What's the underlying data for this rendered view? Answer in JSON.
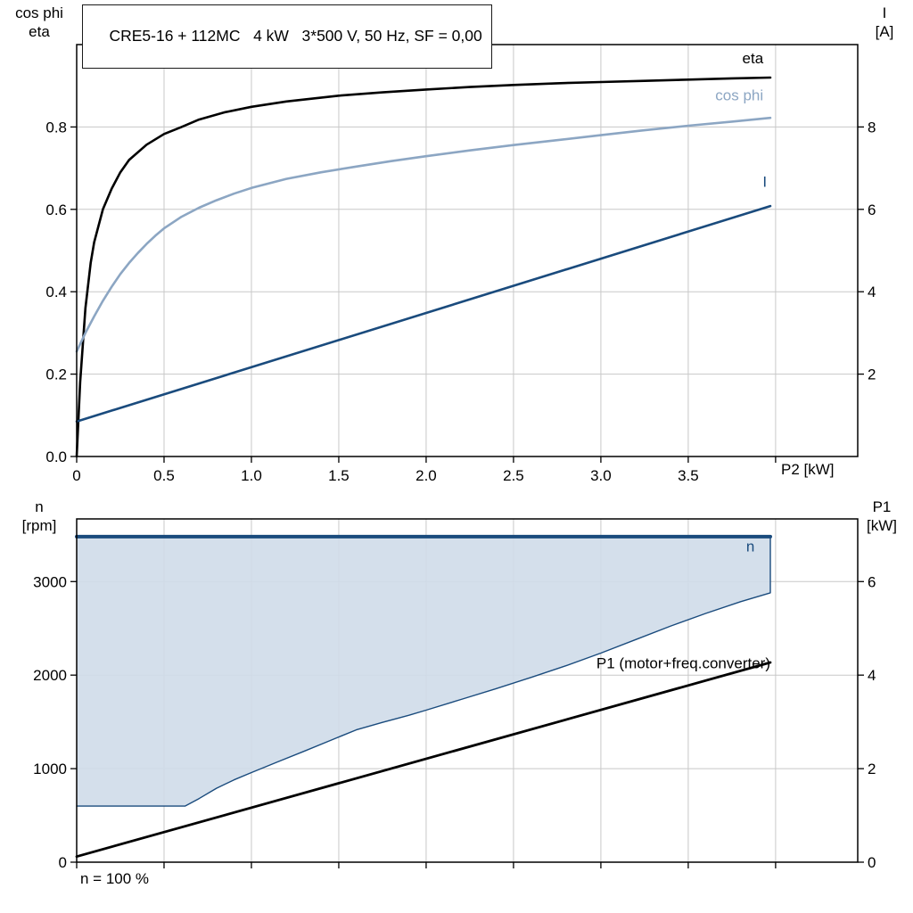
{
  "header": {
    "title": "CRE5-16 + 112MC   4 kW   3*500 V, 50 Hz, SF = 0,00"
  },
  "footer": {
    "note": "n = 100 %"
  },
  "colors": {
    "grid": "#c8c8c8",
    "frame": "#000000",
    "eta": "#000000",
    "cos_phi": "#8CA6C3",
    "current": "#1A4B7D",
    "speed": "#1A4B7D",
    "region_fill": "#CFDCE9",
    "p1": "#000000"
  },
  "chart_data": [
    {
      "type": "line",
      "title": "CRE5-16 + 112MC   4 kW   3*500 V, 50 Hz, SF = 0,00",
      "xlabel": "P2 [kW]",
      "x_range": [
        0,
        4.47
      ],
      "x_ticks": [
        {
          "v": 0,
          "label": "0"
        },
        {
          "v": 0.5,
          "label": "0.5"
        },
        {
          "v": 1,
          "label": "1.0"
        },
        {
          "v": 1.5,
          "label": "1.5"
        },
        {
          "v": 2,
          "label": "2.0"
        },
        {
          "v": 2.5,
          "label": "2.5"
        },
        {
          "v": 3,
          "label": "3.0"
        },
        {
          "v": 3.5,
          "label": "3.5"
        },
        {
          "v": 4
        }
      ],
      "left_axis": {
        "label": [
          "cos phi",
          "eta"
        ],
        "range": [
          0,
          1
        ],
        "ticks": [
          {
            "v": 0,
            "label": "0.0"
          },
          {
            "v": 0.2,
            "label": "0.2"
          },
          {
            "v": 0.4,
            "label": "0.4"
          },
          {
            "v": 0.6,
            "label": "0.6"
          },
          {
            "v": 0.8,
            "label": "0.8"
          }
        ]
      },
      "right_axis": {
        "label": [
          "I",
          "[A]"
        ],
        "range": [
          0,
          10
        ],
        "ticks": [
          {
            "v": 2,
            "label": "2"
          },
          {
            "v": 4,
            "label": "4"
          },
          {
            "v": 6,
            "label": "6"
          },
          {
            "v": 8,
            "label": "8"
          }
        ]
      },
      "series": [
        {
          "name": "eta",
          "axis": "left",
          "color_key": "eta",
          "width": 2.6,
          "label": {
            "x": 3.93,
            "y": 0.955,
            "anchor": "end"
          },
          "points": [
            [
              0,
              0
            ],
            [
              0.02,
              0.18
            ],
            [
              0.05,
              0.36
            ],
            [
              0.08,
              0.47
            ],
            [
              0.1,
              0.52
            ],
            [
              0.15,
              0.6
            ],
            [
              0.2,
              0.65
            ],
            [
              0.25,
              0.69
            ],
            [
              0.3,
              0.72
            ],
            [
              0.4,
              0.757
            ],
            [
              0.5,
              0.783
            ],
            [
              0.6,
              0.8
            ],
            [
              0.7,
              0.818
            ],
            [
              0.85,
              0.836
            ],
            [
              1,
              0.849
            ],
            [
              1.2,
              0.862
            ],
            [
              1.5,
              0.876
            ],
            [
              1.75,
              0.884
            ],
            [
              2,
              0.891
            ],
            [
              2.25,
              0.897
            ],
            [
              2.5,
              0.902
            ],
            [
              2.75,
              0.906
            ],
            [
              3,
              0.909
            ],
            [
              3.25,
              0.912
            ],
            [
              3.5,
              0.915
            ],
            [
              3.75,
              0.918
            ],
            [
              3.97,
              0.92
            ]
          ]
        },
        {
          "name": "cos phi",
          "axis": "left",
          "color_key": "cos_phi",
          "width": 2.6,
          "label": {
            "x": 3.93,
            "y": 0.865,
            "anchor": "end"
          },
          "points": [
            [
              0,
              0.255
            ],
            [
              0.05,
              0.3
            ],
            [
              0.1,
              0.34
            ],
            [
              0.15,
              0.378
            ],
            [
              0.2,
              0.412
            ],
            [
              0.25,
              0.443
            ],
            [
              0.3,
              0.47
            ],
            [
              0.35,
              0.494
            ],
            [
              0.4,
              0.516
            ],
            [
              0.45,
              0.536
            ],
            [
              0.5,
              0.554
            ],
            [
              0.6,
              0.582
            ],
            [
              0.7,
              0.604
            ],
            [
              0.8,
              0.622
            ],
            [
              0.9,
              0.638
            ],
            [
              1,
              0.652
            ],
            [
              1.2,
              0.674
            ],
            [
              1.4,
              0.69
            ],
            [
              1.6,
              0.704
            ],
            [
              1.8,
              0.717
            ],
            [
              2,
              0.729
            ],
            [
              2.25,
              0.743
            ],
            [
              2.5,
              0.756
            ],
            [
              2.75,
              0.768
            ],
            [
              3,
              0.78
            ],
            [
              3.25,
              0.792
            ],
            [
              3.5,
              0.803
            ],
            [
              3.75,
              0.813
            ],
            [
              3.97,
              0.822
            ]
          ]
        },
        {
          "name": "I",
          "axis": "right",
          "color_key": "current",
          "width": 2.6,
          "label": {
            "x": 3.95,
            "y": 6.55,
            "anchor": "end"
          },
          "points": [
            [
              0,
              0.85
            ],
            [
              3.97,
              6.08
            ]
          ]
        }
      ]
    },
    {
      "type": "line",
      "x_range": [
        0,
        4.47
      ],
      "x_ticks": [
        {
          "v": 0
        },
        {
          "v": 0.5
        },
        {
          "v": 1
        },
        {
          "v": 1.5
        },
        {
          "v": 2
        },
        {
          "v": 2.5
        },
        {
          "v": 3
        },
        {
          "v": 3.5
        },
        {
          "v": 4
        }
      ],
      "left_axis": {
        "label": [
          "n",
          "[rpm]"
        ],
        "range": [
          0,
          3670
        ],
        "ticks": [
          {
            "v": 0,
            "label": "0"
          },
          {
            "v": 1000,
            "label": "1000"
          },
          {
            "v": 2000,
            "label": "2000"
          },
          {
            "v": 3000,
            "label": "3000"
          }
        ]
      },
      "right_axis": {
        "label": [
          "P1",
          "[kW]"
        ],
        "range": [
          0,
          7.34
        ],
        "ticks": [
          {
            "v": 0,
            "label": "0"
          },
          {
            "v": 2,
            "label": "2"
          },
          {
            "v": 4,
            "label": "4"
          },
          {
            "v": 6,
            "label": "6"
          }
        ]
      },
      "region": {
        "axis": "left",
        "fill_key": "region_fill",
        "opacity": 0.9,
        "upper": [
          [
            0,
            3480
          ],
          [
            3.97,
            3480
          ]
        ],
        "lower": [
          [
            0,
            600
          ],
          [
            0.62,
            600
          ],
          [
            0.7,
            680
          ],
          [
            0.8,
            790
          ],
          [
            0.9,
            880
          ],
          [
            1,
            958
          ],
          [
            1.15,
            1072
          ],
          [
            1.3,
            1185
          ],
          [
            1.45,
            1300
          ],
          [
            1.6,
            1415
          ],
          [
            1.75,
            1495
          ],
          [
            1.9,
            1570
          ],
          [
            2,
            1625
          ],
          [
            2.2,
            1740
          ],
          [
            2.4,
            1855
          ],
          [
            2.6,
            1975
          ],
          [
            2.8,
            2100
          ],
          [
            3,
            2235
          ],
          [
            3.2,
            2380
          ],
          [
            3.4,
            2525
          ],
          [
            3.6,
            2660
          ],
          [
            3.8,
            2785
          ],
          [
            3.97,
            2880
          ],
          [
            3.97,
            3480
          ]
        ]
      },
      "series": [
        {
          "name": "n-range-boundary",
          "axis": "left",
          "color_key": "speed",
          "width": 1.4,
          "points": [
            [
              0,
              600
            ],
            [
              0.62,
              600
            ],
            [
              0.7,
              680
            ],
            [
              0.8,
              790
            ],
            [
              0.9,
              880
            ],
            [
              1,
              958
            ],
            [
              1.15,
              1072
            ],
            [
              1.3,
              1185
            ],
            [
              1.45,
              1300
            ],
            [
              1.6,
              1415
            ],
            [
              1.75,
              1495
            ],
            [
              1.9,
              1570
            ],
            [
              2,
              1625
            ],
            [
              2.2,
              1740
            ],
            [
              2.4,
              1855
            ],
            [
              2.6,
              1975
            ],
            [
              2.8,
              2100
            ],
            [
              3,
              2235
            ],
            [
              3.2,
              2380
            ],
            [
              3.4,
              2525
            ],
            [
              3.6,
              2660
            ],
            [
              3.8,
              2785
            ],
            [
              3.97,
              2880
            ],
            [
              3.97,
              3480
            ]
          ]
        },
        {
          "name": "n",
          "axis": "left",
          "color_key": "speed",
          "width": 4,
          "label": {
            "x": 3.88,
            "y": 3320,
            "anchor": "end"
          },
          "points": [
            [
              0,
              3480
            ],
            [
              3.97,
              3480
            ]
          ]
        },
        {
          "name": "P1 (motor+freq.converter)",
          "axis": "right",
          "color_key": "p1",
          "width": 2.8,
          "label": {
            "x": 3.97,
            "y": 4.15,
            "anchor": "end"
          },
          "points": [
            [
              0,
              0.12
            ],
            [
              3.97,
              4.27
            ]
          ]
        }
      ]
    }
  ]
}
